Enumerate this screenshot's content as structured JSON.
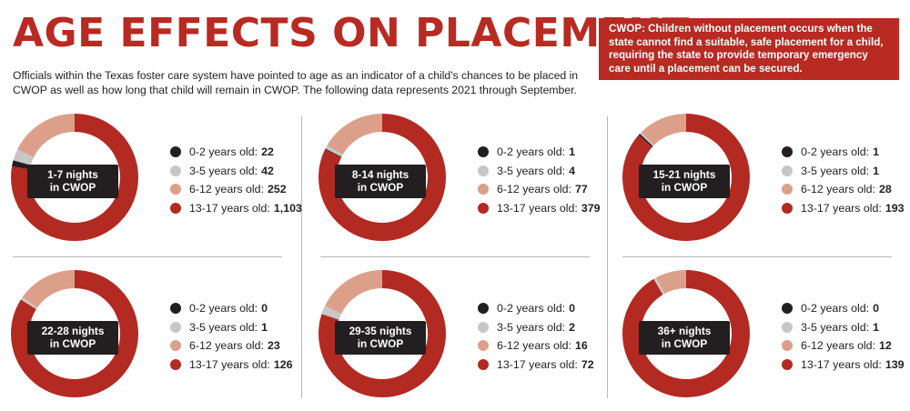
{
  "title": "AGE EFFECTS ON PLACEMENT",
  "intro": "Officials within the Texas foster care system have pointed to age as an indicator of a child's chances to be placed in CWOP as well as how long that child will remain in CWOP. The following data represents 2021 through September.",
  "callout": {
    "term": "CWOP:",
    "text": " Children without placement occurs when the state cannot find a suitable, safe placement for a child, requiring the state to provide temporary emergency care until a placement can be secured."
  },
  "colors": {
    "0-2": "#231f20",
    "3-5": "#c7c7c7",
    "6-12": "#dca08a",
    "13-17": "#b22a22",
    "accent": "#b82a22"
  },
  "chart_data": [
    {
      "type": "pie",
      "center_line1": "1-7 nights",
      "center_line2": "in CWOP",
      "categories": [
        "0-2 years old:",
        "3-5 years old:",
        "6-12 years old:",
        "13-17 years old:"
      ],
      "values": [
        22,
        42,
        252,
        1103
      ],
      "labels": [
        "22",
        "42",
        "252",
        "1,103"
      ]
    },
    {
      "type": "pie",
      "center_line1": "8-14 nights",
      "center_line2": "in CWOP",
      "categories": [
        "0-2 years old:",
        "3-5 years old:",
        "6-12 years old:",
        "13-17 years old:"
      ],
      "values": [
        1,
        4,
        77,
        379
      ],
      "labels": [
        "1",
        "4",
        "77",
        "379"
      ]
    },
    {
      "type": "pie",
      "center_line1": "15-21 nights",
      "center_line2": "in CWOP",
      "categories": [
        "0-2 years old:",
        "3-5 years old:",
        "6-12 years old:",
        "13-17 years old:"
      ],
      "values": [
        1,
        1,
        28,
        193
      ],
      "labels": [
        "1",
        "1",
        "28",
        "193"
      ]
    },
    {
      "type": "pie",
      "center_line1": "22-28 nights",
      "center_line2": "in CWOP",
      "categories": [
        "0-2 years old:",
        "3-5 years old:",
        "6-12 years old:",
        "13-17 years old:"
      ],
      "values": [
        0,
        1,
        23,
        126
      ],
      "labels": [
        "0",
        "1",
        "23",
        "126"
      ]
    },
    {
      "type": "pie",
      "center_line1": "29-35 nights",
      "center_line2": "in CWOP",
      "categories": [
        "0-2 years old:",
        "3-5 years old:",
        "6-12 years old:",
        "13-17 years old:"
      ],
      "values": [
        0,
        2,
        16,
        72
      ],
      "labels": [
        "0",
        "2",
        "16",
        "72"
      ]
    },
    {
      "type": "pie",
      "center_line1": "36+ nights",
      "center_line2": "in CWOP",
      "categories": [
        "0-2 years old:",
        "3-5 years old:",
        "6-12 years old:",
        "13-17 years old:"
      ],
      "values": [
        0,
        1,
        12,
        139
      ],
      "labels": [
        "0",
        "1",
        "12",
        "139"
      ]
    }
  ]
}
